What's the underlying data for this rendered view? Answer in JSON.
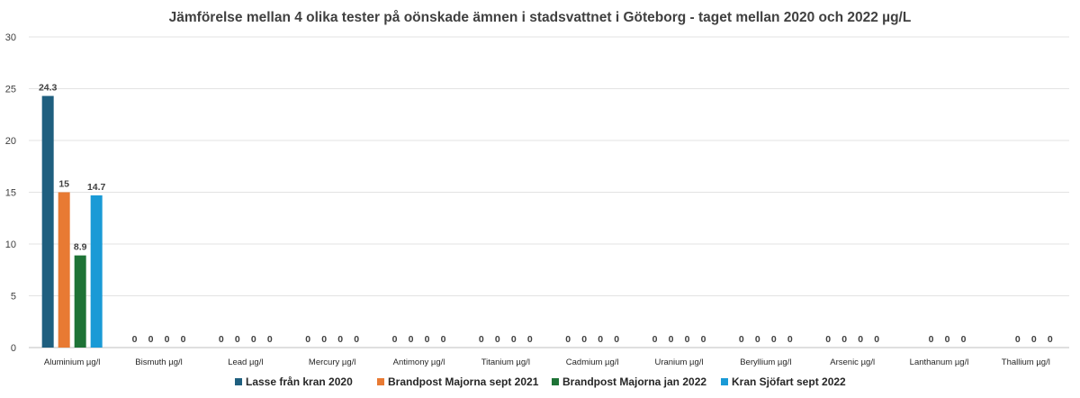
{
  "chart_data": {
    "type": "bar",
    "title": "Jämförelse mellan 4 olika tester på oönskade ämnen i stadsvattnet i Göteborg - taget mellan 2020 och 2022 µg/L",
    "xlabel": "",
    "ylabel": "",
    "ylim": [
      0,
      30
    ],
    "yticks": [
      "0",
      "5",
      "10",
      "15",
      "20",
      "25",
      "30"
    ],
    "grid": true,
    "legend_position": "bottom",
    "categories": [
      "Aluminium  µg/l",
      "Bismuth  µg/l",
      "Lead  µg/l",
      "Mercury  µg/l",
      "Antimony  µg/l",
      "Titanium  µg/l",
      "Cadmium  µg/l",
      "Uranium  µg/l",
      "Beryllium  µg/l",
      "Arsenic  µg/l",
      "Lanthanum  µg/l",
      "Thallium  µg/l"
    ],
    "series": [
      {
        "name": "Lasse från kran 2020",
        "color": "#1f5f7f",
        "values": [
          24.3,
          0,
          0,
          0,
          0,
          0,
          0,
          0,
          0,
          0,
          null,
          null
        ],
        "labels": [
          "24.3",
          "0",
          "0",
          "0",
          "0",
          "0",
          "0",
          "0",
          "0",
          "0",
          "",
          ""
        ]
      },
      {
        "name": "Brandpost Majorna sept 2021",
        "color": "#e87a33",
        "values": [
          15,
          0,
          0,
          0,
          0,
          0,
          0,
          0,
          0,
          0,
          0,
          0
        ],
        "labels": [
          "15",
          "0",
          "0",
          "0",
          "0",
          "0",
          "0",
          "0",
          "0",
          "0",
          "0",
          "0"
        ]
      },
      {
        "name": "Brandpost Majorna jan 2022",
        "color": "#1e7336",
        "values": [
          8.9,
          0,
          0,
          0,
          0,
          0,
          0,
          0,
          0,
          0,
          0,
          0
        ],
        "labels": [
          "8.9",
          "0",
          "0",
          "0",
          "0",
          "0",
          "0",
          "0",
          "0",
          "0",
          "0",
          "0"
        ]
      },
      {
        "name": "Kran Sjöfart sept 2022",
        "color": "#1a9ad6",
        "values": [
          14.7,
          0,
          0,
          0,
          0,
          0,
          0,
          0,
          0,
          0,
          0,
          0
        ],
        "labels": [
          "14.7",
          "0",
          "0",
          "0",
          "0",
          "0",
          "0",
          "0",
          "0",
          "0",
          "0",
          "0"
        ]
      }
    ]
  }
}
